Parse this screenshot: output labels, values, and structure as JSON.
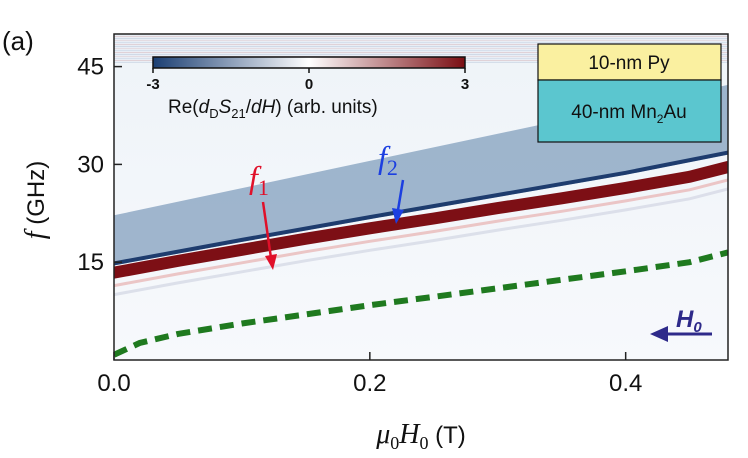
{
  "panel_label": "(a)",
  "chart_data": {
    "type": "heatmap",
    "xlabel": {
      "mu": "μ",
      "sub0": "0",
      "H": "H",
      "sub1": "0",
      "unit": " (T)"
    },
    "ylabel": {
      "f": "f",
      "unit": " (GHz)"
    },
    "xlim": [
      0,
      0.48
    ],
    "ylim": [
      0,
      50
    ],
    "xticks": [
      "0.0",
      "0.2",
      "0.4"
    ],
    "xtick_values": [
      0,
      0.2,
      0.4
    ],
    "yticks": [
      "15",
      "30",
      "45"
    ],
    "ytick_values": [
      15,
      30,
      45
    ],
    "colorbar": {
      "min_label": "-3",
      "mid_label": "0",
      "max_label": "3",
      "range": [
        -3,
        3
      ],
      "colors": [
        "#1b3f73",
        "#ffffff",
        "#7a0d12"
      ],
      "label": {
        "pre": "Re(",
        "d": "d",
        "subD": "D",
        "S": "S",
        "sub21": "21",
        "slash": "/",
        "dH": "dH",
        "post": ") (arb. units)"
      }
    },
    "modes": [
      {
        "name": "f1",
        "label": "f",
        "label_sub": "1",
        "color": "#e0102a",
        "x": [
          0,
          0.05,
          0.1,
          0.15,
          0.2,
          0.25,
          0.3,
          0.35,
          0.4,
          0.45,
          0.48
        ],
        "y": [
          13.4,
          15.2,
          16.9,
          18.6,
          20.2,
          21.7,
          23.3,
          24.8,
          26.4,
          28.1,
          29.6
        ]
      },
      {
        "name": "f2",
        "label": "f",
        "label_sub": "2",
        "color": "#1c3fe0",
        "x": [
          0,
          0.1,
          0.2,
          0.3,
          0.4,
          0.48
        ],
        "y": [
          14.2,
          17.8,
          21.3,
          24.7,
          28.1,
          31.2
        ]
      }
    ],
    "dashed_curve": {
      "color": "#1f7a1f",
      "x": [
        0,
        0.02,
        0.05,
        0.1,
        0.15,
        0.2,
        0.25,
        0.3,
        0.35,
        0.4,
        0.45,
        0.48
      ],
      "y": [
        0.8,
        2.6,
        4.0,
        5.6,
        7.0,
        8.4,
        9.7,
        11.0,
        12.3,
        13.6,
        15.0,
        16.5
      ]
    },
    "field_arrow": {
      "label": "H",
      "label_sub": "0",
      "color": "#2e2a8a"
    },
    "legend": {
      "layers": [
        {
          "label_pre": "10-nm Py",
          "label_sub": "",
          "label_post": "",
          "color": "#faf0a0"
        },
        {
          "label_pre": "40-nm Mn",
          "label_sub": "2",
          "label_post": "Au",
          "color": "#5bc6cf"
        }
      ]
    }
  }
}
